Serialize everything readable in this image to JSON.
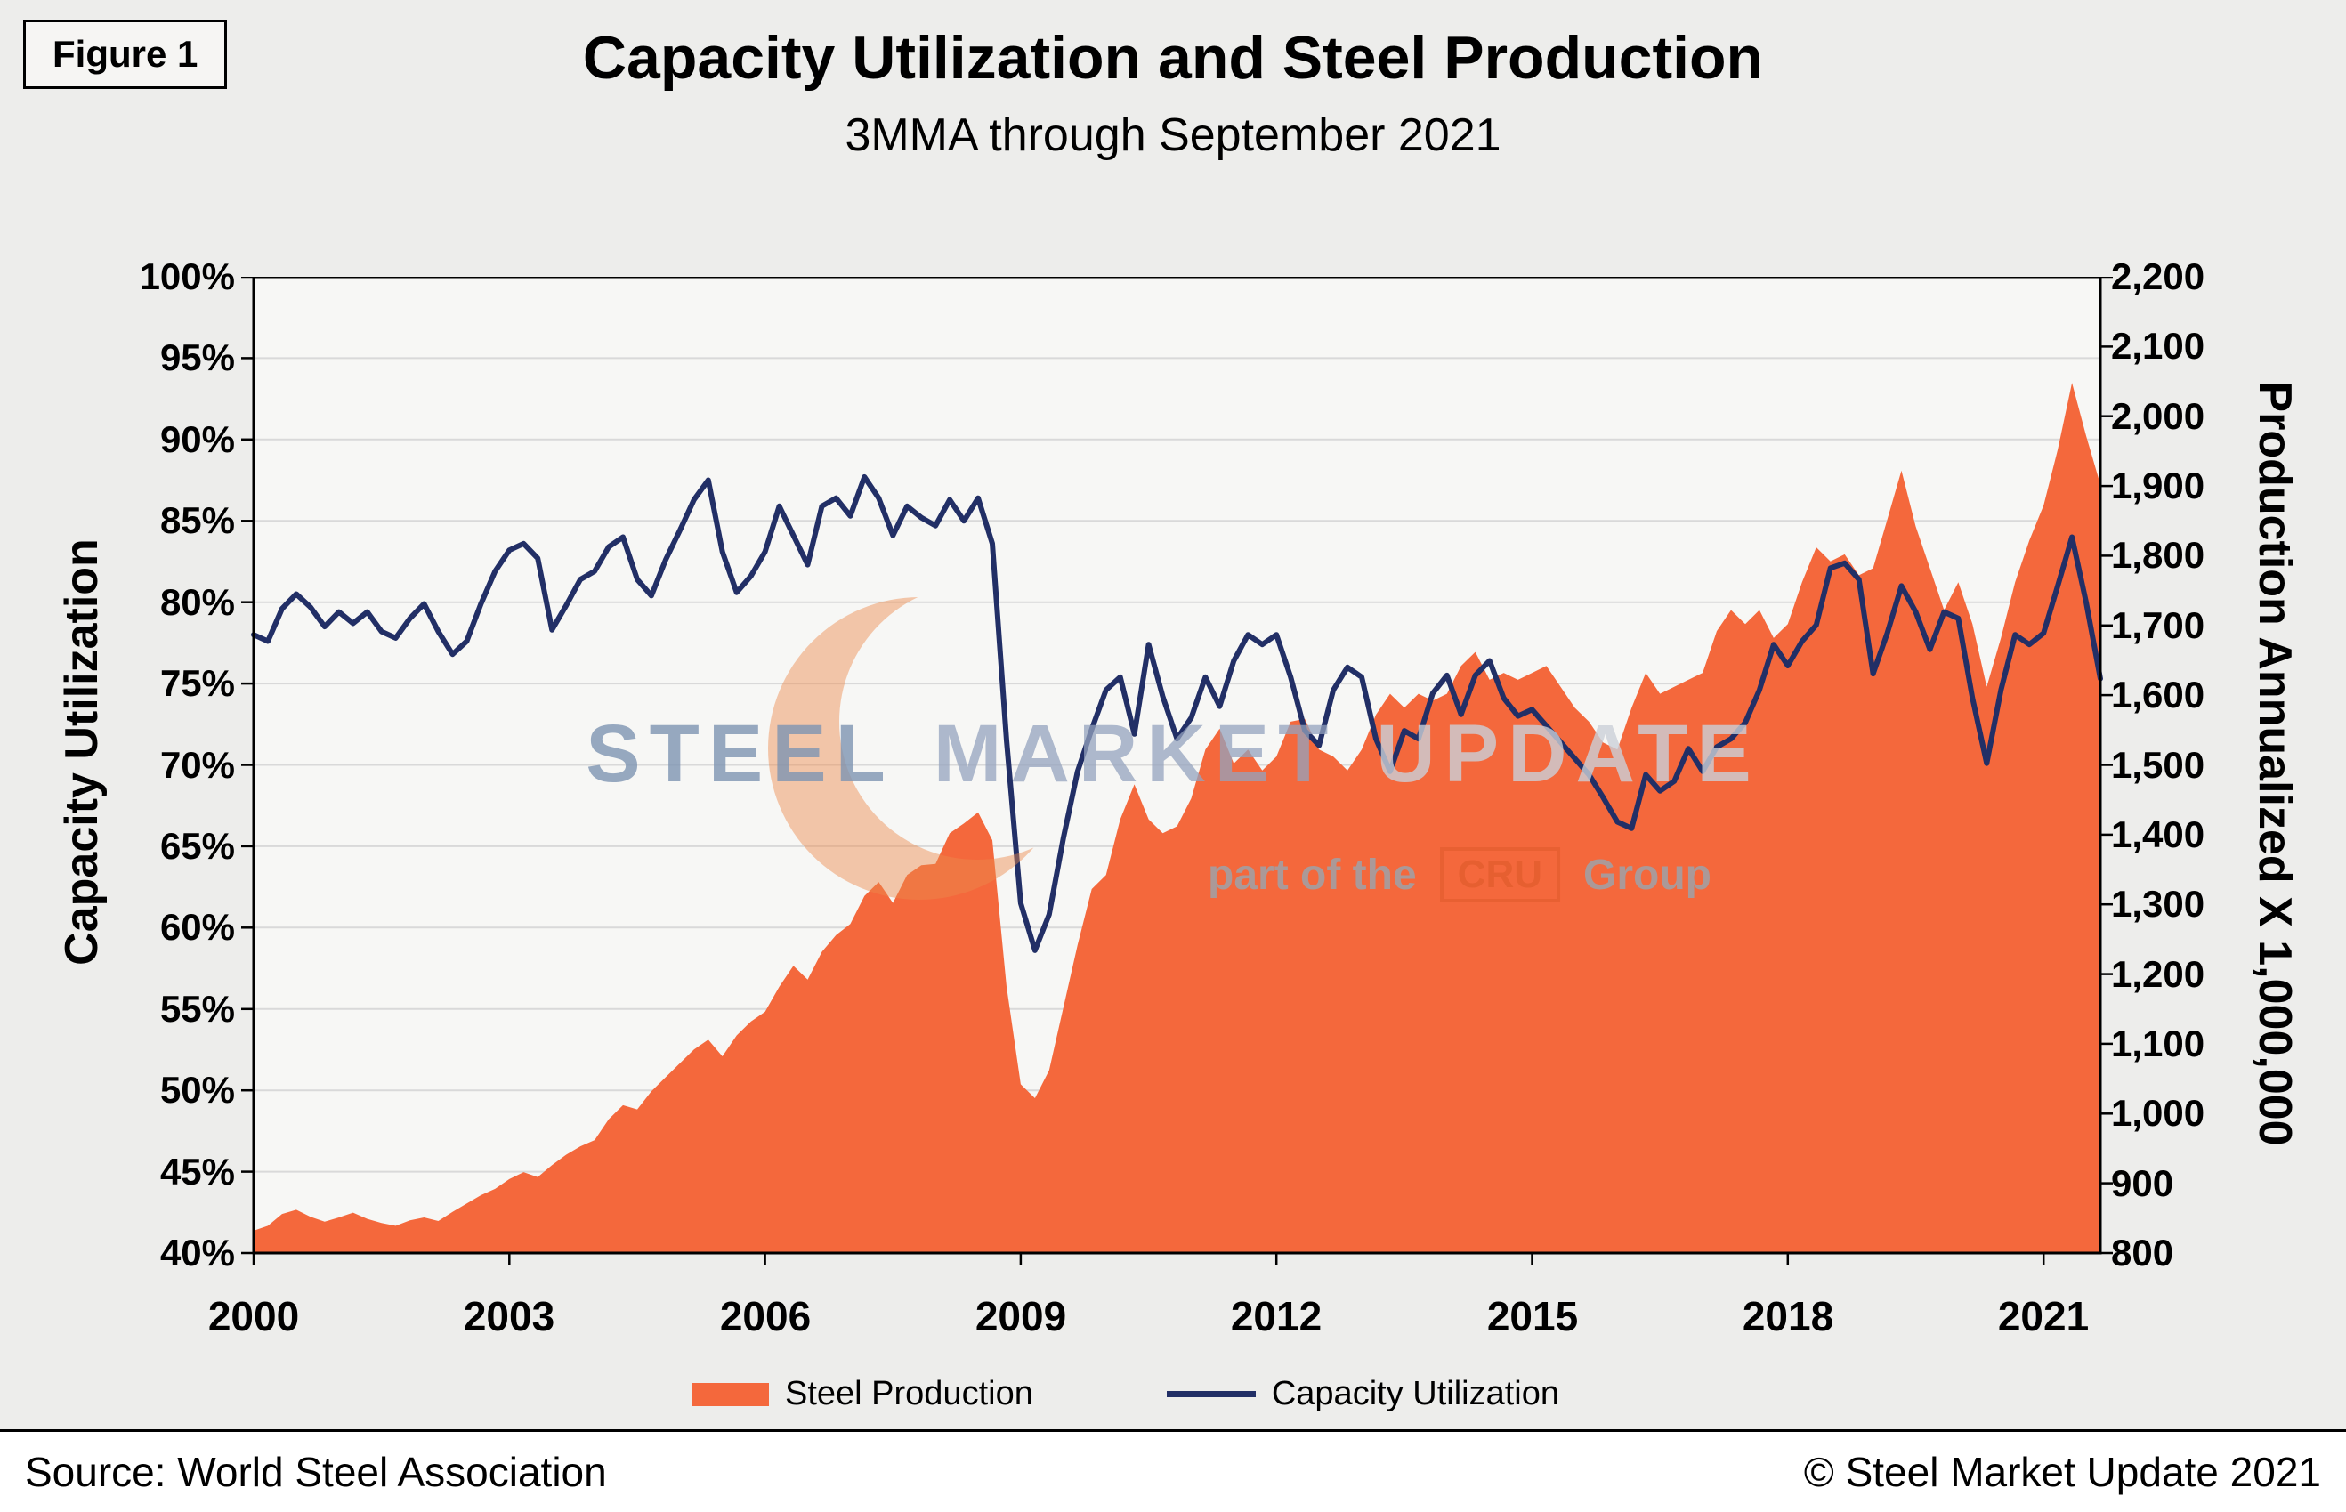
{
  "figure_label": "Figure 1",
  "title": "Capacity Utilization and Steel Production",
  "subtitle": "3MMA through September 2021",
  "watermark": {
    "word1": "STEEL",
    "word2": "MARKET",
    "word3": "UPDATE",
    "part_of_the": "part of the",
    "cru": "CRU",
    "group": "Group",
    "moon_color": "#ED8A4C"
  },
  "legend": {
    "position": "bottom",
    "items": [
      {
        "label": "Steel Production",
        "type": "area",
        "color": "#F4683C"
      },
      {
        "label": "Capacity Utilization",
        "type": "line",
        "color": "#222F66"
      }
    ]
  },
  "footer": {
    "source": "Source: World Steel Association",
    "copyright": "© Steel Market Update 2021"
  },
  "chart_data": {
    "type": "area+line",
    "title": "Capacity Utilization and Steel Production",
    "subtitle": "3MMA through September 2021",
    "grid": "horizontal",
    "plot_bg": "#F7F7F5",
    "grid_color": "#D9D9D9",
    "x_start": 2000,
    "x_interval_months": 2,
    "x_ticks": [
      {
        "v": 2000,
        "label": "2000"
      },
      {
        "v": 2003,
        "label": "2003"
      },
      {
        "v": 2006,
        "label": "2006"
      },
      {
        "v": 2009,
        "label": "2009"
      },
      {
        "v": 2012,
        "label": "2012"
      },
      {
        "v": 2015,
        "label": "2015"
      },
      {
        "v": 2018,
        "label": "2018"
      },
      {
        "v": 2021,
        "label": "2021"
      }
    ],
    "left_axis": {
      "title": "Capacity Utilization",
      "min": 40,
      "max": 100,
      "tick_step": 5,
      "ticks": [
        {
          "v": 40,
          "label": "40%"
        },
        {
          "v": 45,
          "label": "45%"
        },
        {
          "v": 50,
          "label": "50%"
        },
        {
          "v": 55,
          "label": "55%"
        },
        {
          "v": 60,
          "label": "60%"
        },
        {
          "v": 65,
          "label": "65%"
        },
        {
          "v": 70,
          "label": "70%"
        },
        {
          "v": 75,
          "label": "75%"
        },
        {
          "v": 80,
          "label": "80%"
        },
        {
          "v": 85,
          "label": "85%"
        },
        {
          "v": 90,
          "label": "90%"
        },
        {
          "v": 95,
          "label": "95%"
        },
        {
          "v": 100,
          "label": "100%"
        }
      ]
    },
    "right_axis": {
      "title": "Production Annualized X 1,000,000",
      "min": 800,
      "max": 2200,
      "tick_step": 100,
      "ticks": [
        {
          "v": 800,
          "label": "800"
        },
        {
          "v": 900,
          "label": "900"
        },
        {
          "v": 1000,
          "label": "1,000"
        },
        {
          "v": 1100,
          "label": "1,100"
        },
        {
          "v": 1200,
          "label": "1,200"
        },
        {
          "v": 1300,
          "label": "1,300"
        },
        {
          "v": 1400,
          "label": "1,400"
        },
        {
          "v": 1500,
          "label": "1,500"
        },
        {
          "v": 1600,
          "label": "1,600"
        },
        {
          "v": 1700,
          "label": "1,700"
        },
        {
          "v": 1800,
          "label": "1,800"
        },
        {
          "v": 1900,
          "label": "1,900"
        },
        {
          "v": 2000,
          "label": "2,000"
        },
        {
          "v": 2100,
          "label": "2,100"
        },
        {
          "v": 2200,
          "label": "2,200"
        }
      ]
    },
    "series": [
      {
        "name": "Steel Production",
        "axis": "right",
        "type": "area",
        "color": "#F4683C",
        "values": [
          832,
          839,
          856,
          862,
          852,
          845,
          851,
          858,
          849,
          843,
          839,
          847,
          851,
          846,
          859,
          871,
          883,
          892,
          906,
          916,
          909,
          926,
          941,
          953,
          962,
          992,
          1012,
          1006,
          1032,
          1052,
          1072,
          1092,
          1106,
          1082,
          1112,
          1132,
          1146,
          1182,
          1212,
          1192,
          1232,
          1256,
          1272,
          1312,
          1332,
          1302,
          1342,
          1356,
          1358,
          1402,
          1416,
          1432,
          1392,
          1182,
          1042,
          1022,
          1062,
          1152,
          1242,
          1322,
          1342,
          1422,
          1472,
          1422,
          1402,
          1412,
          1452,
          1522,
          1552,
          1502,
          1522,
          1492,
          1512,
          1562,
          1566,
          1522,
          1512,
          1492,
          1522,
          1572,
          1602,
          1582,
          1602,
          1592,
          1602,
          1642,
          1662,
          1622,
          1632,
          1622,
          1632,
          1642,
          1612,
          1582,
          1562,
          1532,
          1522,
          1582,
          1632,
          1602,
          1612,
          1622,
          1632,
          1692,
          1722,
          1702,
          1722,
          1682,
          1702,
          1762,
          1812,
          1792,
          1802,
          1772,
          1782,
          1852,
          1922,
          1842,
          1782,
          1722,
          1762,
          1702,
          1612,
          1682,
          1762,
          1822,
          1872,
          1952,
          2048,
          1972,
          1902
        ]
      },
      {
        "name": "Capacity Utilization",
        "axis": "left",
        "type": "line",
        "color": "#222F66",
        "values": [
          78,
          77.6,
          79.6,
          80.5,
          79.7,
          78.5,
          79.4,
          78.7,
          79.4,
          78.2,
          77.8,
          79,
          79.9,
          78.2,
          76.8,
          77.6,
          79.9,
          81.9,
          83.2,
          83.6,
          82.7,
          78.3,
          79.8,
          81.4,
          81.9,
          83.4,
          84,
          81.4,
          80.4,
          82.6,
          84.4,
          86.3,
          87.5,
          83.1,
          80.6,
          81.6,
          83.1,
          85.9,
          84.1,
          82.3,
          85.9,
          86.4,
          85.3,
          87.7,
          86.4,
          84.1,
          85.9,
          85.2,
          84.7,
          86.3,
          85,
          86.4,
          83.6,
          71.5,
          61.5,
          58.6,
          60.8,
          65.5,
          69.6,
          72.2,
          74.6,
          75.4,
          71.9,
          77.4,
          74.2,
          71.6,
          72.9,
          75.4,
          73.6,
          76.4,
          78,
          77.4,
          78,
          75.4,
          72.1,
          71.2,
          74.6,
          76,
          75.4,
          71.6,
          69.6,
          72.1,
          71.6,
          74.4,
          75.5,
          73.1,
          75.5,
          76.4,
          74.1,
          73,
          73.4,
          72.4,
          71.4,
          70.4,
          69.4,
          68,
          66.5,
          66.1,
          69.4,
          68.4,
          69,
          71,
          69.6,
          71.1,
          71.6,
          72.6,
          74.6,
          77.4,
          76.1,
          77.6,
          78.6,
          82.1,
          82.4,
          81.4,
          75.6,
          78.1,
          81,
          79.4,
          77.1,
          79.4,
          79,
          74.1,
          70.1,
          74.6,
          78,
          77.4,
          78.1,
          81,
          84,
          80,
          75.3
        ]
      }
    ]
  }
}
